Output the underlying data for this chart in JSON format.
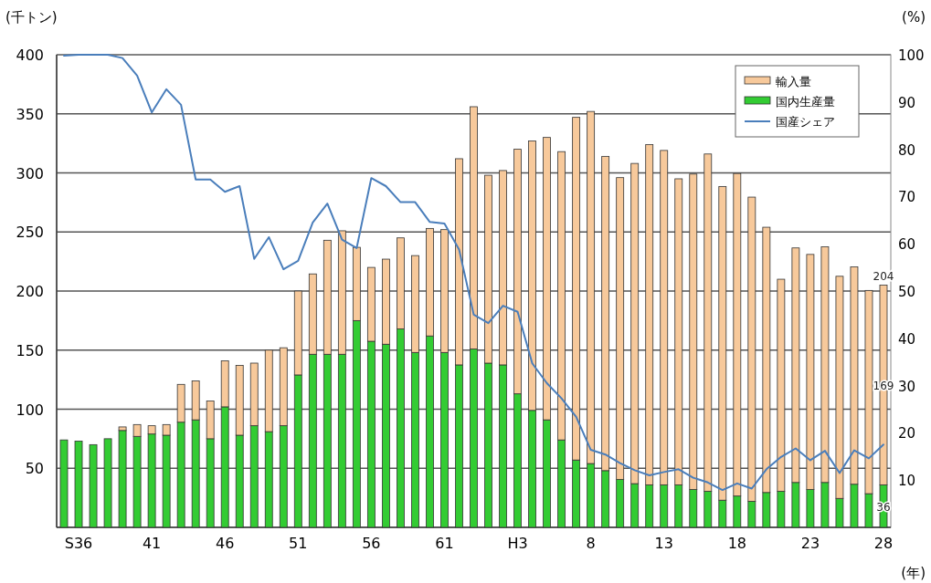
{
  "chart_data": {
    "type": "bar",
    "stacked": true,
    "ylabel": "(千トン)",
    "y2label": "(%)",
    "xlabel": "(年)",
    "categories": [
      null,
      "S36",
      null,
      null,
      null,
      null,
      "41",
      null,
      null,
      null,
      null,
      "46",
      null,
      null,
      null,
      null,
      "51",
      null,
      null,
      null,
      null,
      "56",
      null,
      null,
      null,
      null,
      "61",
      null,
      null,
      null,
      null,
      "H3",
      null,
      null,
      null,
      null,
      "8",
      null,
      null,
      null,
      null,
      "13",
      null,
      null,
      null,
      null,
      "18",
      null,
      null,
      null,
      null,
      "23",
      null,
      null,
      null,
      null,
      "28"
    ],
    "series": [
      {
        "name": "国内生産量",
        "color": "#33cc33",
        "values": [
          74,
          73,
          70,
          75,
          82,
          77,
          79,
          78,
          89,
          91,
          75,
          102,
          78,
          86,
          81,
          86,
          129,
          146.5,
          146.5,
          146.5,
          175,
          157.5,
          155,
          168,
          148,
          162,
          148,
          137.5,
          151,
          139,
          137.5,
          113,
          99,
          91,
          74,
          57,
          54,
          48,
          40.5,
          37,
          36,
          36,
          36,
          32,
          30.5,
          23,
          26.5,
          22,
          29.5,
          30.5,
          38,
          32,
          38,
          24.5,
          36.5,
          28.5,
          36
        ],
        "value_labels": [
          null,
          null,
          null,
          null,
          null,
          null,
          null,
          null,
          null,
          null,
          null,
          null,
          null,
          null,
          null,
          null,
          null,
          null,
          null,
          null,
          null,
          null,
          null,
          null,
          null,
          null,
          null,
          null,
          null,
          null,
          null,
          null,
          null,
          null,
          null,
          null,
          null,
          null,
          null,
          null,
          null,
          null,
          null,
          null,
          null,
          null,
          null,
          null,
          null,
          null,
          null,
          null,
          null,
          null,
          null,
          null,
          "36"
        ]
      },
      {
        "name": "輸入量",
        "color": "#f7c99b",
        "values": [
          0,
          0,
          0,
          0,
          3,
          10,
          7,
          9,
          32,
          33,
          32,
          39,
          59,
          53,
          69,
          66,
          71,
          68,
          96.5,
          104.5,
          62,
          62.5,
          72,
          77,
          82,
          91,
          104,
          174.5,
          205,
          159,
          164.5,
          207,
          228,
          239,
          244,
          290,
          298,
          266,
          255.5,
          271,
          288,
          283,
          259,
          267,
          285.5,
          265.5,
          273,
          257.5,
          224.5,
          179.5,
          198.5,
          199,
          199.5,
          188,
          184,
          172,
          169
        ],
        "value_labels": [
          null,
          null,
          null,
          null,
          null,
          null,
          null,
          null,
          null,
          null,
          null,
          null,
          null,
          null,
          null,
          null,
          null,
          null,
          null,
          null,
          null,
          null,
          null,
          null,
          null,
          null,
          null,
          null,
          null,
          null,
          null,
          null,
          null,
          null,
          null,
          null,
          null,
          null,
          null,
          null,
          null,
          null,
          null,
          null,
          null,
          null,
          null,
          null,
          null,
          null,
          null,
          null,
          null,
          null,
          null,
          null,
          "169"
        ]
      },
      {
        "name": "国産シェア",
        "type": "line",
        "axis": "y2",
        "color": "#4a7ebb",
        "values": [
          99.8,
          100,
          100,
          100,
          99.3,
          95.6,
          87.8,
          92.7,
          89.4,
          73.6,
          73.6,
          71,
          72.2,
          56.8,
          61.4,
          54.6,
          56.4,
          64.5,
          68.5,
          60.9,
          59.1,
          73.9,
          72.2,
          68.8,
          68.8,
          64.6,
          64.3,
          58.8,
          45,
          43.2,
          46.9,
          45.6,
          34.7,
          30.5,
          27.3,
          23.4,
          16.4,
          15.4,
          13.6,
          12.1,
          11,
          11.7,
          12.3,
          10.5,
          9.5,
          7.9,
          9.3,
          8.2,
          12.3,
          14.9,
          16.7,
          14.2,
          16.2,
          11.5,
          16.3,
          14.6,
          17.5
        ]
      }
    ],
    "totals": [
      null,
      null,
      null,
      null,
      null,
      null,
      null,
      null,
      null,
      null,
      null,
      null,
      null,
      null,
      null,
      null,
      null,
      null,
      null,
      null,
      null,
      null,
      null,
      null,
      null,
      null,
      null,
      null,
      null,
      null,
      null,
      null,
      null,
      null,
      null,
      null,
      null,
      null,
      null,
      null,
      null,
      null,
      null,
      null,
      null,
      null,
      null,
      null,
      null,
      null,
      null,
      null,
      null,
      null,
      null,
      null,
      "204"
    ],
    "ylim": [
      0,
      400
    ],
    "yticks": [
      50,
      100,
      150,
      200,
      250,
      300,
      350,
      400
    ],
    "y2lim": [
      0,
      100
    ],
    "y2ticks": [
      10,
      20,
      30,
      40,
      50,
      60,
      70,
      80,
      90,
      100
    ],
    "grid": "y",
    "legend": "top right",
    "marker": "none",
    "line_style": "solid"
  }
}
